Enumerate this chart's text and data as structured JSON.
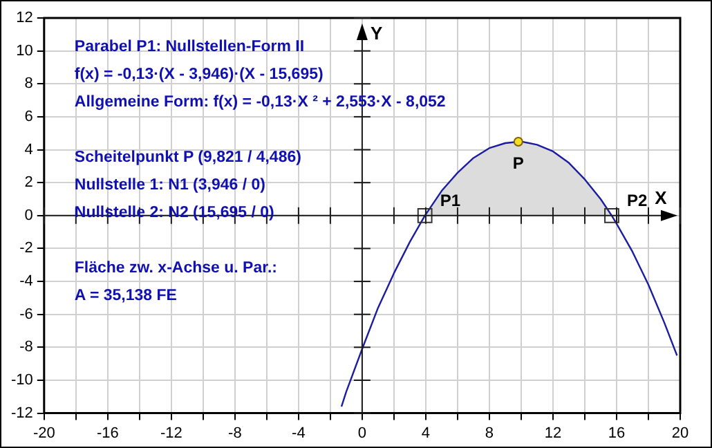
{
  "chart_data": {
    "type": "line",
    "xlabel": "X",
    "ylabel": "Y",
    "xlim": [
      -20,
      20
    ],
    "ylim": [
      -12,
      12
    ],
    "xticks": [
      -20,
      {
        "value": -18,
        "label": null
      },
      -16,
      {
        "value": -14,
        "label": null
      },
      -12,
      {
        "value": -10,
        "label": null
      },
      -8,
      {
        "value": -6,
        "label": null
      },
      -4,
      {
        "value": -2,
        "label": null
      },
      0,
      {
        "value": 2,
        "label": null
      },
      4,
      {
        "value": 6,
        "label": null
      },
      8,
      {
        "value": 10,
        "label": null
      },
      12,
      {
        "value": 14,
        "label": null
      },
      16,
      {
        "value": 18,
        "label": null
      },
      20
    ],
    "yticks": [
      -12,
      -10,
      -8,
      -6,
      -4,
      -2,
      0,
      2,
      4,
      6,
      8,
      10,
      12
    ],
    "grid": true,
    "legend": false,
    "series": [
      {
        "type": "area",
        "color": "#dcdcdc",
        "x": [
          3.946,
          5,
          6,
          7,
          8,
          9,
          9.821,
          10,
          11,
          12,
          13,
          14,
          15,
          15.695
        ],
        "values": [
          0,
          1.5,
          2.6,
          3.5,
          4.1,
          4.4,
          4.486,
          4.5,
          4.3,
          3.9,
          3.2,
          2.2,
          1.0,
          0
        ]
      },
      {
        "type": "line",
        "color": "#1c1ca0",
        "marker": "none",
        "x": [
          -1.3,
          -1,
          0,
          1,
          2,
          3,
          3.946,
          5,
          6,
          7,
          8,
          9,
          9.821,
          10,
          11,
          12,
          13,
          14,
          15,
          15.695,
          16,
          17,
          18,
          19,
          19.8
        ],
        "values": [
          -11.6,
          -10.7,
          -8.1,
          -5.6,
          -3.5,
          -1.6,
          0,
          1.5,
          2.6,
          3.5,
          4.1,
          4.4,
          4.486,
          4.5,
          4.3,
          3.9,
          3.2,
          2.2,
          1.0,
          0,
          -0.5,
          -2.2,
          -4.2,
          -6.5,
          -8.5
        ]
      },
      {
        "type": "scatter",
        "color": "#f0e020",
        "marker": "circle",
        "x": [
          9.821
        ],
        "values": [
          4.486
        ]
      },
      {
        "type": "scatter",
        "color": "#333333",
        "marker": "square",
        "x": [
          3.946,
          15.695
        ],
        "values": [
          0,
          0
        ]
      }
    ],
    "annotations": [
      "Parabel P1: Nullstellen-Form II",
      "f(x) = -0,13·(X - 3,946)·(X - 15,695)",
      "Allgemeine Form: f(x) = -0,13·X ² + 2,553·X - 8,052",
      "Scheitelpunkt P (9,821 / 4,486)",
      "Nullstelle 1: N1 (3,946 / 0)",
      "Nullstelle 2: N2 (15,695 / 0)",
      "Fläche zw. x-Achse u. Par.:",
      "A = 35,138 FE",
      {
        "text": "P",
        "x": 9.821,
        "y": 4.486
      },
      {
        "text": "P1",
        "x": 3.946,
        "y": 0
      },
      {
        "text": "P2",
        "x": 15.695,
        "y": 0
      }
    ]
  }
}
